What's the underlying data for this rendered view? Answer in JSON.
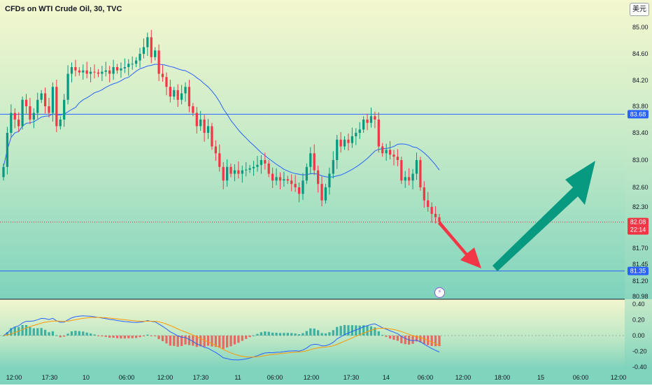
{
  "title": "CFDs on WTI Crude Oil, 30, TVC",
  "currency_button": "美元",
  "lightning_icon": "lightning-icon",
  "chart_data": {
    "type": "candlestick",
    "symbol": "CFDs on WTI Crude Oil",
    "interval": "30",
    "source": "TVC",
    "price_axis": {
      "ticks": [
        85.0,
        84.6,
        84.2,
        83.8,
        83.4,
        83.0,
        82.6,
        82.3,
        81.7,
        81.45,
        81.2,
        80.98
      ],
      "ylim": [
        80.9,
        85.2
      ]
    },
    "time_axis": {
      "ticks": [
        "12:00",
        "17:30",
        "10",
        "06:00",
        "12:00",
        "17:30",
        "11",
        "06:00",
        "12:00",
        "17:30",
        "14",
        "06:00",
        "12:00",
        "18:00",
        "15",
        "06:00",
        "12:00"
      ]
    },
    "horizontal_lines": [
      {
        "value": 83.68,
        "label": "83.68",
        "color": "#2962ff"
      },
      {
        "value": 81.35,
        "label": "81.35",
        "color": "#2962ff"
      }
    ],
    "last_price": {
      "value": 82.08,
      "label": "82.08",
      "countdown": "22:14",
      "color": "#f23645"
    },
    "closes": [
      82.9,
      83.4,
      83.7,
      83.6,
      83.5,
      83.9,
      83.8,
      83.6,
      83.7,
      83.9,
      84.0,
      83.8,
      83.7,
      84.1,
      83.5,
      83.6,
      83.9,
      84.3,
      84.4,
      84.35,
      84.32,
      84.35,
      84.3,
      84.33,
      84.32,
      84.3,
      84.33,
      84.35,
      84.3,
      84.4,
      84.35,
      84.38,
      84.4,
      84.45,
      84.45,
      84.5,
      84.6,
      84.7,
      84.85,
      84.55,
      84.65,
      84.3,
      84.25,
      84.1,
      83.95,
      84.05,
      83.9,
      84.0,
      84.1,
      83.8,
      83.7,
      83.5,
      83.6,
      83.4,
      83.5,
      83.2,
      83.1,
      82.9,
      82.7,
      82.9,
      82.8,
      82.85,
      82.8,
      82.85,
      82.86,
      82.88,
      82.9,
      82.93,
      83.0,
      82.95,
      82.8,
      82.7,
      82.75,
      82.7,
      82.72,
      82.7,
      82.65,
      82.6,
      82.5,
      82.7,
      82.9,
      83.1,
      82.85,
      82.65,
      82.4,
      82.6,
      82.8,
      83.0,
      83.3,
      83.2,
      83.3,
      83.25,
      83.35,
      83.4,
      83.45,
      83.6,
      83.55,
      83.65,
      83.6,
      83.2,
      83.1,
      83.15,
      83.08,
      83.05,
      83.0,
      82.7,
      82.75,
      82.7,
      82.8,
      83.0,
      82.6,
      82.4,
      82.3,
      82.2,
      82.15,
      82.08
    ],
    "macd": {
      "yticks": [
        0.4,
        0.2,
        0.0,
        -0.2,
        -0.4
      ],
      "ylim": [
        -0.46,
        0.46
      ],
      "macd_line_color": "#2962ff",
      "signal_line_color": "#ff9800",
      "hist_positive_color": "#26a69a",
      "hist_negative_color": "#ef5350"
    }
  },
  "annotations": [
    {
      "shape": "arrow",
      "color": "#f23645",
      "direction": "down-right"
    },
    {
      "shape": "arrow",
      "color": "#089981",
      "direction": "up-right"
    }
  ]
}
